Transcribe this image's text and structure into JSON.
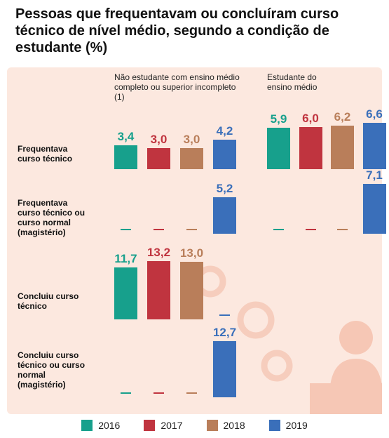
{
  "chart_data": {
    "type": "bar",
    "title": "Pessoas que frequentavam ou concluíram curso técnico de nível médio, segundo a condição de estudante (%)",
    "columns": [
      "Não estudante com ensino médio completo ou superior incompleto (1)",
      "Estudante do ensino médio"
    ],
    "rows": [
      "Frequentava curso técnico",
      "Frequentava curso técnico ou curso normal (magistério)",
      "Concluiu curso técnico",
      "Concluiu curso técnico ou curso normal (magistério)"
    ],
    "series": [
      {
        "name": "2016",
        "color": "#17a08c",
        "values": [
          [
            3.4,
            5.9
          ],
          [
            null,
            null
          ],
          [
            11.7
          ],
          [
            null
          ]
        ],
        "value_labels": [
          [
            "3,4",
            "5,9"
          ],
          [
            null,
            null
          ],
          [
            "11,7"
          ],
          [
            null
          ]
        ]
      },
      {
        "name": "2017",
        "color": "#c0343f",
        "values": [
          [
            3.0,
            6.0
          ],
          [
            null,
            null
          ],
          [
            13.2
          ],
          [
            null
          ]
        ],
        "value_labels": [
          [
            "3,0",
            "6,0"
          ],
          [
            null,
            null
          ],
          [
            "13,2"
          ],
          [
            null
          ]
        ]
      },
      {
        "name": "2018",
        "color": "#b97e5a",
        "values": [
          [
            3.0,
            6.2
          ],
          [
            null,
            null
          ],
          [
            13.0
          ],
          [
            null
          ]
        ],
        "value_labels": [
          [
            "3,0",
            "6,2"
          ],
          [
            null,
            null
          ],
          [
            "13,0"
          ],
          [
            null
          ]
        ]
      },
      {
        "name": "2019",
        "color": "#3a6fba",
        "values": [
          [
            4.2,
            6.6
          ],
          [
            5.2,
            7.1
          ],
          [
            null
          ],
          [
            12.7
          ]
        ],
        "value_labels": [
          [
            "4,2",
            "6,6"
          ],
          [
            "5,2",
            "7,1"
          ],
          [
            null
          ],
          [
            "12,7"
          ]
        ]
      }
    ]
  }
}
